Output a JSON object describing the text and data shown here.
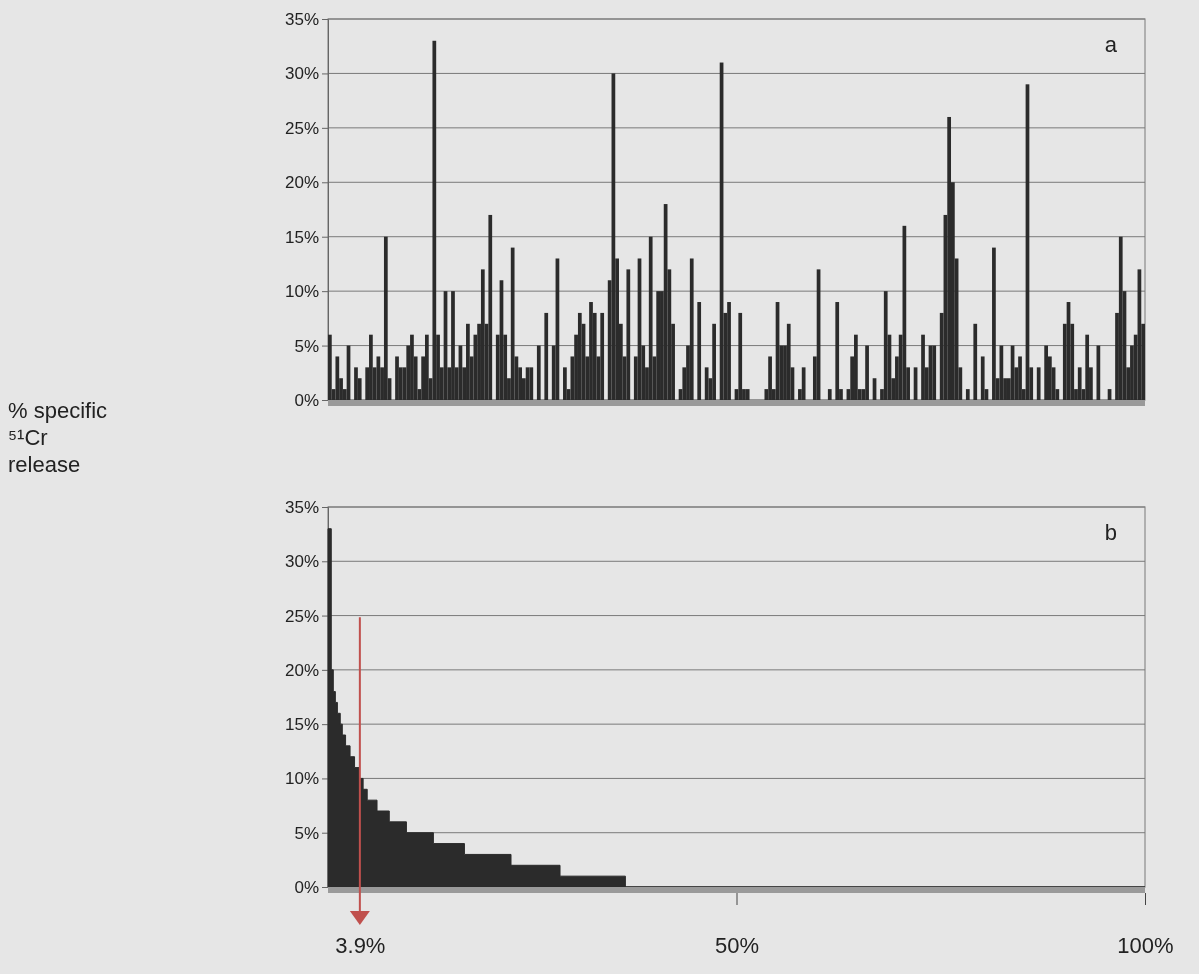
{
  "chart_data": [
    {
      "type": "bar",
      "title": "a",
      "ylabel": "% specific ⁵¹Cr release",
      "categories": [
        null,
        null,
        null,
        null,
        null,
        null,
        null,
        null,
        null,
        null,
        null,
        null,
        null,
        null,
        null,
        null,
        null,
        null,
        null,
        null,
        null,
        null,
        null,
        null,
        null,
        null,
        null,
        null,
        null,
        null,
        null,
        null,
        null,
        null,
        null,
        null,
        null,
        null,
        null,
        null,
        null,
        null,
        null,
        null,
        null,
        null,
        null,
        null,
        null,
        null,
        null,
        null,
        null,
        null,
        null,
        null,
        null,
        null,
        null,
        null,
        null,
        null,
        null,
        null,
        null,
        null,
        null,
        null,
        null,
        null,
        null,
        null,
        null,
        null,
        null,
        null,
        null,
        null,
        null,
        null,
        null,
        null,
        null,
        null,
        null,
        null,
        null,
        null,
        null,
        null,
        null,
        null,
        null,
        null,
        null,
        null,
        null,
        null,
        null,
        null,
        null,
        null,
        null,
        null,
        null,
        null,
        null,
        null,
        null,
        null,
        null,
        null,
        null,
        null,
        null,
        null,
        null,
        null,
        null,
        null,
        null,
        null,
        null,
        null,
        null,
        null,
        null,
        null,
        null,
        null,
        null,
        null,
        null,
        null,
        null,
        null,
        null,
        null,
        null,
        null,
        null,
        null,
        null,
        null,
        null,
        null,
        null,
        null,
        null,
        null,
        null,
        null,
        null,
        null,
        null,
        null,
        null,
        null,
        null,
        null,
        null,
        null,
        null,
        null,
        null,
        null,
        null,
        null,
        null,
        null,
        null,
        null,
        null,
        null,
        null,
        null,
        null,
        null,
        null,
        null,
        null,
        null,
        null,
        null,
        null,
        null,
        null,
        null,
        null,
        null,
        null,
        null,
        null,
        null,
        null,
        null,
        null,
        null,
        null,
        null,
        null,
        null,
        null,
        null,
        null,
        null,
        null,
        null,
        null,
        null,
        null,
        null,
        null,
        null,
        null,
        null,
        null,
        null,
        null
      ],
      "values": [
        6,
        1,
        4,
        2,
        1,
        5,
        0,
        3,
        2,
        0,
        3,
        6,
        3,
        4,
        3,
        15,
        2,
        0,
        4,
        3,
        3,
        5,
        6,
        4,
        1,
        4,
        6,
        2,
        33,
        6,
        3,
        10,
        3,
        10,
        3,
        5,
        3,
        7,
        4,
        6,
        7,
        12,
        7,
        17,
        0,
        6,
        11,
        6,
        2,
        14,
        4,
        3,
        2,
        3,
        3,
        0,
        5,
        0,
        8,
        0,
        5,
        13,
        0,
        3,
        1,
        4,
        6,
        8,
        7,
        4,
        9,
        8,
        4,
        8,
        0,
        11,
        30,
        13,
        7,
        4,
        12,
        0,
        4,
        13,
        5,
        3,
        15,
        4,
        10,
        10,
        18,
        12,
        7,
        0,
        1,
        3,
        5,
        13,
        0,
        9,
        0,
        3,
        2,
        7,
        0,
        31,
        8,
        9,
        0,
        1,
        8,
        1,
        1,
        0,
        0,
        0,
        0,
        1,
        4,
        1,
        9,
        5,
        5,
        7,
        3,
        0,
        1,
        3,
        0,
        0,
        4,
        12,
        0,
        0,
        1,
        0,
        9,
        1,
        0,
        1,
        4,
        6,
        1,
        1,
        5,
        0,
        2,
        0,
        1,
        10,
        6,
        2,
        4,
        6,
        16,
        3,
        0,
        3,
        0,
        6,
        3,
        5,
        5,
        0,
        8,
        17,
        26,
        20,
        13,
        3,
        0,
        1,
        0,
        7,
        0,
        4,
        1,
        0,
        14,
        2,
        5,
        2,
        2,
        5,
        3,
        4,
        1,
        29,
        3,
        0,
        3,
        0,
        5,
        4,
        3,
        1,
        0,
        7,
        9,
        7,
        1,
        3,
        1,
        6,
        3,
        0,
        5,
        0,
        0,
        1,
        0,
        8,
        15,
        10,
        3,
        5,
        6,
        12,
        7
      ],
      "color": "#2b2b2b",
      "ylim": [
        0,
        35
      ],
      "yticks": [
        {
          "value": 0,
          "label": "0%"
        },
        {
          "value": 5,
          "label": "5%"
        },
        {
          "value": 10,
          "label": "10%"
        },
        {
          "value": 15,
          "label": "15%"
        },
        {
          "value": 20,
          "label": "20%"
        },
        {
          "value": 25,
          "label": "25%"
        },
        {
          "value": 30,
          "label": "30%"
        },
        {
          "value": 35,
          "label": "35%"
        }
      ],
      "grid": "y",
      "tick_labels": "y"
    },
    {
      "type": "area",
      "title": "b",
      "x": [
        0,
        0.4,
        0.4,
        0.65,
        0.65,
        0.9,
        0.9,
        1.15,
        1.15,
        1.5,
        1.5,
        1.75,
        1.75,
        2.15,
        2.15,
        2.7,
        2.7,
        3.25,
        3.25,
        3.8,
        3.8,
        4.3,
        4.3,
        4.8,
        4.8,
        6.0,
        6.0,
        7.5,
        7.5,
        9.6,
        9.6,
        12.9,
        12.9,
        16.7,
        16.7,
        22.4,
        22.4,
        28.4,
        28.4,
        36.4,
        36.4,
        100
      ],
      "values": [
        33,
        33,
        20,
        20,
        18,
        18,
        17,
        17,
        16,
        16,
        15,
        15,
        14,
        14,
        13,
        13,
        12,
        12,
        11,
        11,
        10,
        10,
        9,
        9,
        8,
        8,
        7,
        7,
        6,
        6,
        5,
        5,
        4,
        4,
        3,
        3,
        2,
        2,
        1,
        1,
        0,
        0
      ],
      "color": "#2b2b2b",
      "xlim": [
        0,
        100
      ],
      "xticks": [
        {
          "value": 3.9,
          "label": "3.9%"
        },
        {
          "value": 50,
          "label": "50%"
        },
        {
          "value": 100,
          "label": "100%"
        }
      ],
      "ref_lines": [
        {
          "axis": "x",
          "value": 3.9,
          "color": "#c0504d"
        }
      ],
      "ylim": [
        0,
        35
      ],
      "yticks": [
        {
          "value": 0,
          "label": "0%"
        },
        {
          "value": 5,
          "label": "5%"
        },
        {
          "value": 10,
          "label": "10%"
        },
        {
          "value": 15,
          "label": "15%"
        },
        {
          "value": 20,
          "label": "20%"
        },
        {
          "value": 25,
          "label": "25%"
        },
        {
          "value": 30,
          "label": "30%"
        },
        {
          "value": 35,
          "label": "35%"
        }
      ],
      "grid": "y"
    }
  ]
}
